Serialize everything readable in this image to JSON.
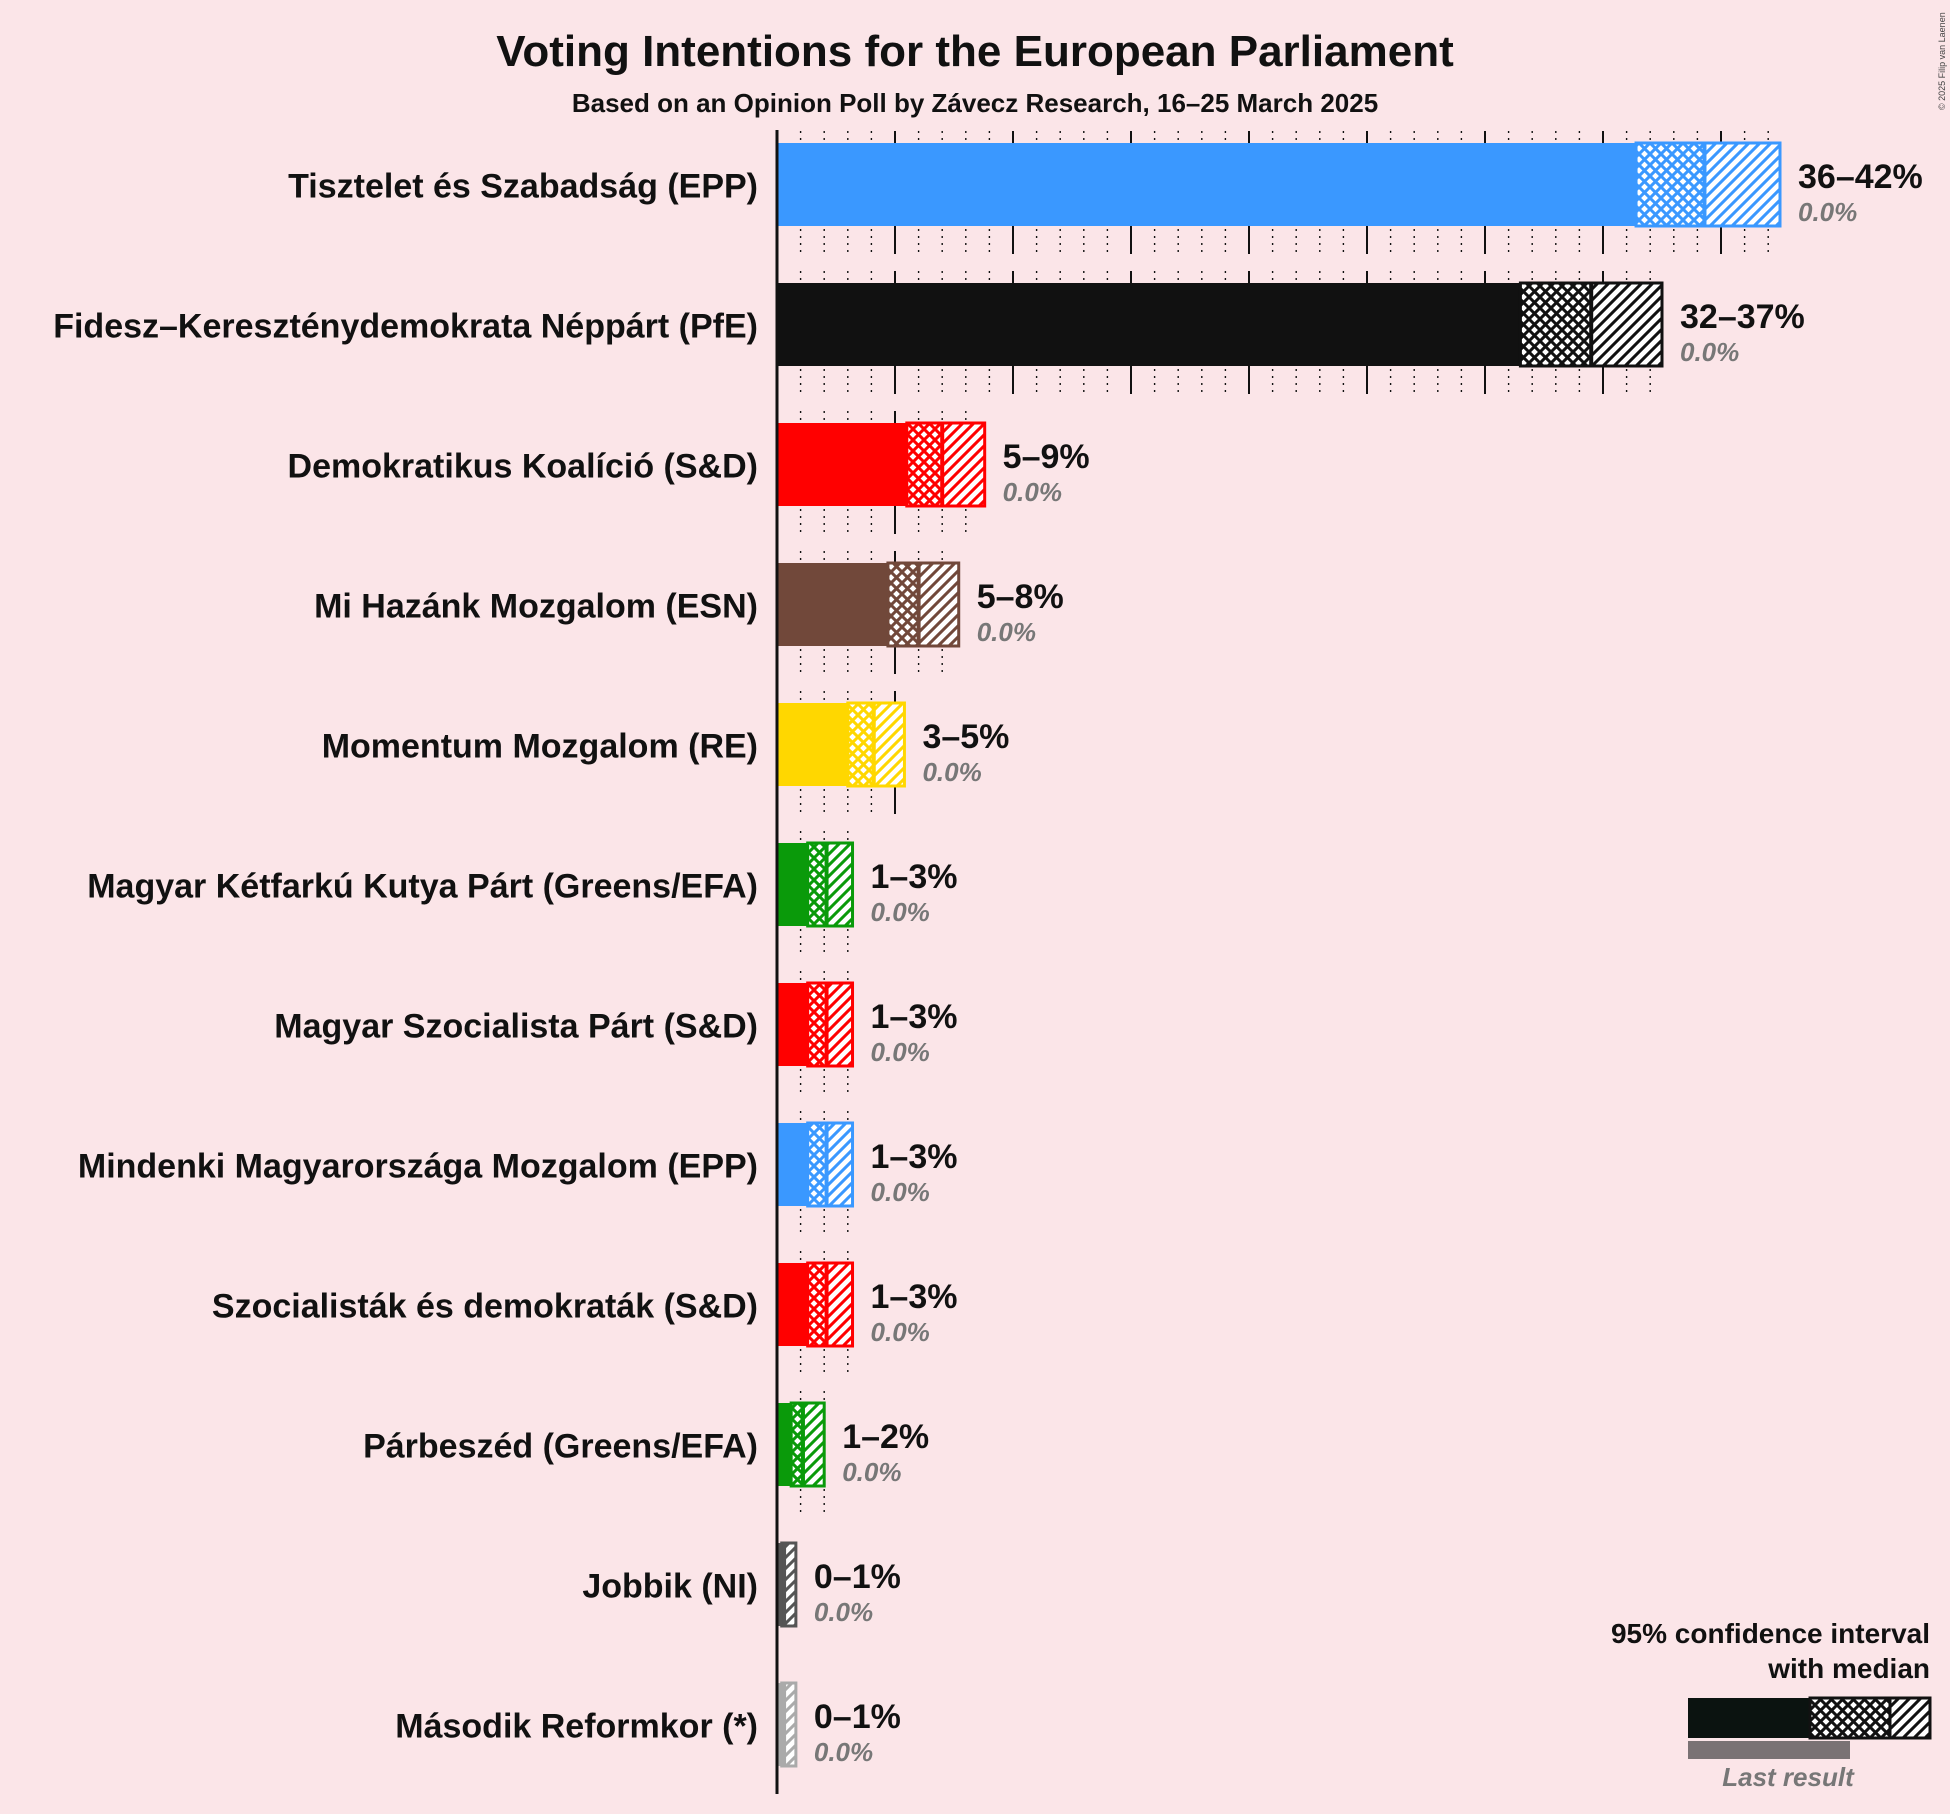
{
  "title": "Voting Intentions for the European Parliament",
  "subtitle": "Based on an Opinion Poll by Závecz Research, 16–25 March 2025",
  "copyright": "© 2025 Filip van Laenen",
  "legend": {
    "line1": "95% confidence interval",
    "line2": "with median",
    "last_result": "Last result"
  },
  "chart_data": {
    "type": "bar",
    "orientation": "horizontal",
    "title": "Voting Intentions for the European Parliament",
    "xlabel": "",
    "ylabel": "",
    "xlim": [
      0,
      42.5
    ],
    "unit": "%",
    "parties": [
      {
        "name": "Tisztelet és Szabadság (EPP)",
        "color": "#3a98ff",
        "low": 36.4,
        "median": 39.3,
        "high": 42.5,
        "range_label": "36–42%",
        "last_label": "0.0%",
        "last": 0.0
      },
      {
        "name": "Fidesz–Kereszténydemokrata Néppárt (PfE)",
        "color": "#111111",
        "low": 31.5,
        "median": 34.5,
        "high": 37.5,
        "range_label": "32–37%",
        "last_label": "0.0%",
        "last": 0.0
      },
      {
        "name": "Demokratikus Koalíció (S&D)",
        "color": "#ff0000",
        "low": 5.5,
        "median": 7.0,
        "high": 8.8,
        "range_label": "5–9%",
        "last_label": "0.0%",
        "last": 0.0
      },
      {
        "name": "Mi Hazánk Mozgalom (ESN)",
        "color": "#71483a",
        "low": 4.7,
        "median": 6.0,
        "high": 7.7,
        "range_label": "5–8%",
        "last_label": "0.0%",
        "last": 0.0
      },
      {
        "name": "Momentum Mozgalom (RE)",
        "color": "#ffd700",
        "low": 3.0,
        "median": 4.1,
        "high": 5.4,
        "range_label": "3–5%",
        "last_label": "0.0%",
        "last": 0.0
      },
      {
        "name": "Magyar Kétfarkú Kutya Párt (Greens/EFA)",
        "color": "#0a9a0a",
        "low": 1.3,
        "median": 2.1,
        "high": 3.2,
        "range_label": "1–3%",
        "last_label": "0.0%",
        "last": 0.0
      },
      {
        "name": "Magyar Szocialista Párt (S&D)",
        "color": "#ff0000",
        "low": 1.3,
        "median": 2.1,
        "high": 3.2,
        "range_label": "1–3%",
        "last_label": "0.0%",
        "last": 0.0
      },
      {
        "name": "Mindenki Magyarországa Mozgalom (EPP)",
        "color": "#3a98ff",
        "low": 1.3,
        "median": 2.1,
        "high": 3.2,
        "range_label": "1–3%",
        "last_label": "0.0%",
        "last": 0.0
      },
      {
        "name": "Szocialisták és demokraták (S&D)",
        "color": "#ff0000",
        "low": 1.3,
        "median": 2.1,
        "high": 3.2,
        "range_label": "1–3%",
        "last_label": "0.0%",
        "last": 0.0
      },
      {
        "name": "Párbeszéd (Greens/EFA)",
        "color": "#0a9a0a",
        "low": 0.6,
        "median": 1.1,
        "high": 2.0,
        "range_label": "1–2%",
        "last_label": "0.0%",
        "last": 0.0
      },
      {
        "name": "Jobbik (NI)",
        "color": "#555555",
        "low": 0.2,
        "median": 0.3,
        "high": 0.8,
        "range_label": "0–1%",
        "last_label": "0.0%",
        "last": 0.0
      },
      {
        "name": "Második Reformkor (*)",
        "color": "#aaaaaa",
        "low": 0.2,
        "median": 0.3,
        "high": 0.8,
        "range_label": "0–1%",
        "last_label": "0.0%",
        "last": 0.0
      }
    ]
  }
}
